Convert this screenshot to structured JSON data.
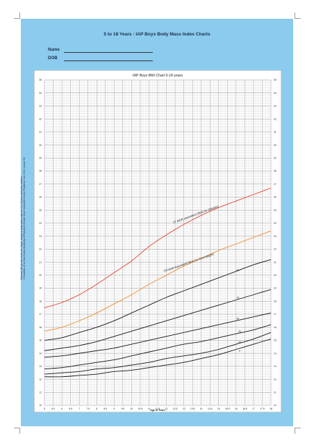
{
  "page": {
    "title": "5 to 18 Years : IAP Boys Body Mass Index Charts",
    "form": {
      "name_label": "Name",
      "dob_label": "DOB"
    },
    "side_note": {
      "line1": "Revised IAP growth charts for height, weight & body mass index for 5 to 18 year old Indian children.",
      "line2": "V Khadilkar et al. from Indian Academy of Pediatrics Growth Chart Committee Indian Pediatrics, Jan 2015, volume 52"
    }
  },
  "chart_data": {
    "type": "line",
    "title": "IAP Boys  BMI Chart  5-18 years",
    "xlabel": "Age in Years",
    "ylabel": "",
    "xlim": [
      5,
      18
    ],
    "ylim": [
      10,
      35
    ],
    "grid": true,
    "x_ticks": [
      "5",
      "5.5",
      "6",
      "6.5",
      "7",
      "7.5",
      "8",
      "8.5",
      "9",
      "9.5",
      "10",
      "10.5",
      "11",
      "11.5",
      "12",
      "12.5",
      "13",
      "13.5",
      "14",
      "14.5",
      "15",
      "15.5",
      "16",
      "16.5",
      "17",
      "17.5",
      "18"
    ],
    "y_ticks": [
      "10",
      "11",
      "12",
      "13",
      "14",
      "15",
      "16",
      "17",
      "18",
      "19",
      "20",
      "21",
      "22",
      "23",
      "24",
      "25",
      "26",
      "27",
      "28",
      "29",
      "30",
      "31",
      "32",
      "33",
      "34",
      "35"
    ],
    "x": [
      5,
      6,
      7,
      8,
      9,
      10,
      11,
      12,
      13,
      14,
      15,
      16,
      17,
      18
    ],
    "series": [
      {
        "name": "27 Adult equivalent (Risk for Obesity)",
        "color": "#e8402a",
        "values": [
          17.5,
          17.9,
          18.5,
          19.3,
          20.2,
          21.1,
          22.2,
          23.1,
          23.9,
          24.6,
          25.2,
          25.7,
          26.2,
          26.7
        ]
      },
      {
        "name": "23 Adult equivalent (Risk for Overweight)",
        "color": "#f0892a",
        "values": [
          15.7,
          16.0,
          16.5,
          17.1,
          17.8,
          18.5,
          19.3,
          20.0,
          20.7,
          21.3,
          21.9,
          22.4,
          22.9,
          23.4
        ]
      },
      {
        "name": "90",
        "color": "#111111",
        "values": [
          15.0,
          15.2,
          15.6,
          16.0,
          16.5,
          17.1,
          17.7,
          18.3,
          18.8,
          19.3,
          19.8,
          20.3,
          20.8,
          21.2
        ]
      },
      {
        "name": "75",
        "color": "#111111",
        "values": [
          14.2,
          14.4,
          14.6,
          14.9,
          15.3,
          15.7,
          16.1,
          16.5,
          16.9,
          17.3,
          17.7,
          18.1,
          18.5,
          18.9
        ]
      },
      {
        "name": "50",
        "color": "#111111",
        "values": [
          13.7,
          13.8,
          14.0,
          14.2,
          14.4,
          14.7,
          15.0,
          15.3,
          15.6,
          15.9,
          16.2,
          16.5,
          16.8,
          17.1
        ]
      },
      {
        "name": "25",
        "color": "#111111",
        "values": [
          12.8,
          12.9,
          13.1,
          13.3,
          13.5,
          13.8,
          14.1,
          14.4,
          14.7,
          14.9,
          15.2,
          15.5,
          15.8,
          16.2
        ]
      },
      {
        "name": "10",
        "color": "#111111",
        "values": [
          12.4,
          12.5,
          12.6,
          12.8,
          12.9,
          13.1,
          13.3,
          13.6,
          13.8,
          14.0,
          14.3,
          14.7,
          15.1,
          15.6
        ]
      },
      {
        "name": "3",
        "color": "#111111",
        "values": [
          12.2,
          12.2,
          12.3,
          12.4,
          12.6,
          12.7,
          12.9,
          13.1,
          13.3,
          13.6,
          13.9,
          14.3,
          14.7,
          15.1
        ]
      }
    ],
    "line_labels": [
      {
        "text": "27 Adult equivalent (Risk for Obesity)",
        "x": 13.7,
        "y": 24.6,
        "angle": -20
      },
      {
        "text": "23 Adult equivalent (Risk for Overweight)",
        "x": 13.3,
        "y": 20.9,
        "angle": -19
      },
      {
        "text": "90",
        "x": 16.1,
        "y": 20.3,
        "angle": 0
      },
      {
        "text": "75",
        "x": 16.1,
        "y": 18.2,
        "angle": 0
      },
      {
        "text": "50",
        "x": 16.1,
        "y": 16.6,
        "angle": 0
      },
      {
        "text": "25",
        "x": 16.2,
        "y": 15.6,
        "angle": 0
      },
      {
        "text": "10",
        "x": 16.2,
        "y": 14.8,
        "angle": 0
      },
      {
        "text": "3",
        "x": 16.2,
        "y": 14.1,
        "angle": 0
      }
    ]
  }
}
